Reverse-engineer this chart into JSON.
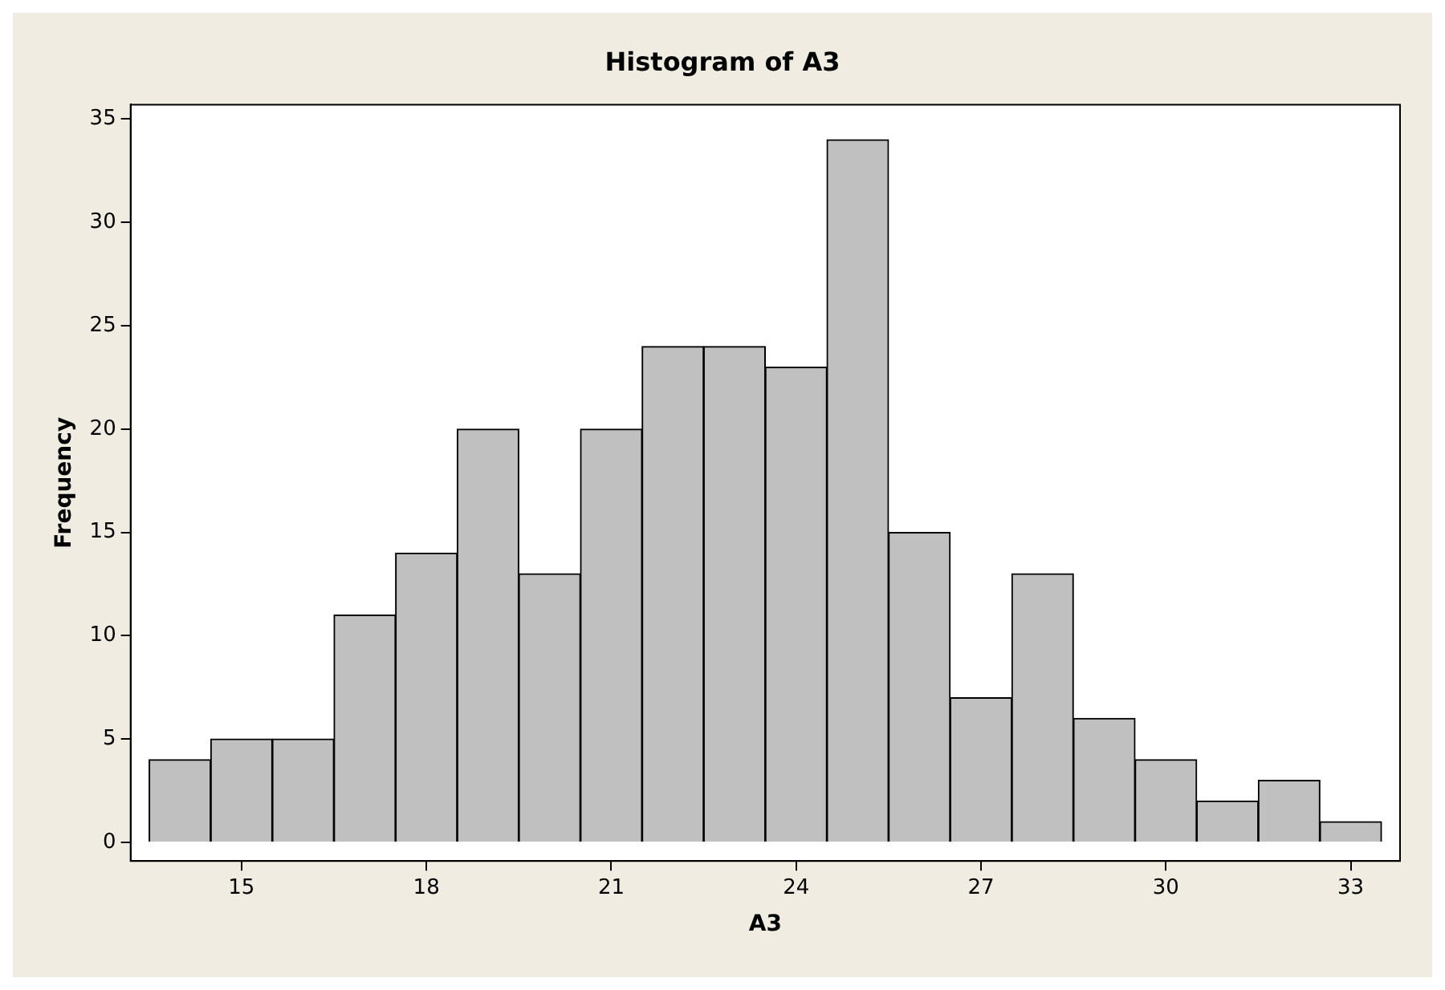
{
  "chart_data": {
    "type": "histogram",
    "title": "Histogram of A3",
    "xlabel": "A3",
    "ylabel": "Frequency",
    "bins": [
      13.5,
      14.5,
      15.5,
      16.5,
      17.5,
      18.5,
      19.5,
      20.5,
      21.5,
      22.5,
      23.5,
      24.5,
      25.5,
      26.5,
      27.5,
      28.5,
      29.5,
      30.5,
      31.5,
      32.5,
      33.5
    ],
    "values": [
      4,
      5,
      5,
      11,
      14,
      20,
      13,
      20,
      24,
      24,
      23,
      34,
      15,
      7,
      13,
      6,
      4,
      2,
      3,
      1
    ],
    "color": "#c0c0c0",
    "xlim": [
      13.2,
      33.8
    ],
    "xticks": [
      15,
      18,
      21,
      24,
      27,
      30,
      33
    ],
    "ylim": [
      -0.9,
      35.7
    ],
    "yticks": [
      0,
      5,
      10,
      15,
      20,
      25,
      30,
      35
    ],
    "grid": false,
    "legend": false
  }
}
